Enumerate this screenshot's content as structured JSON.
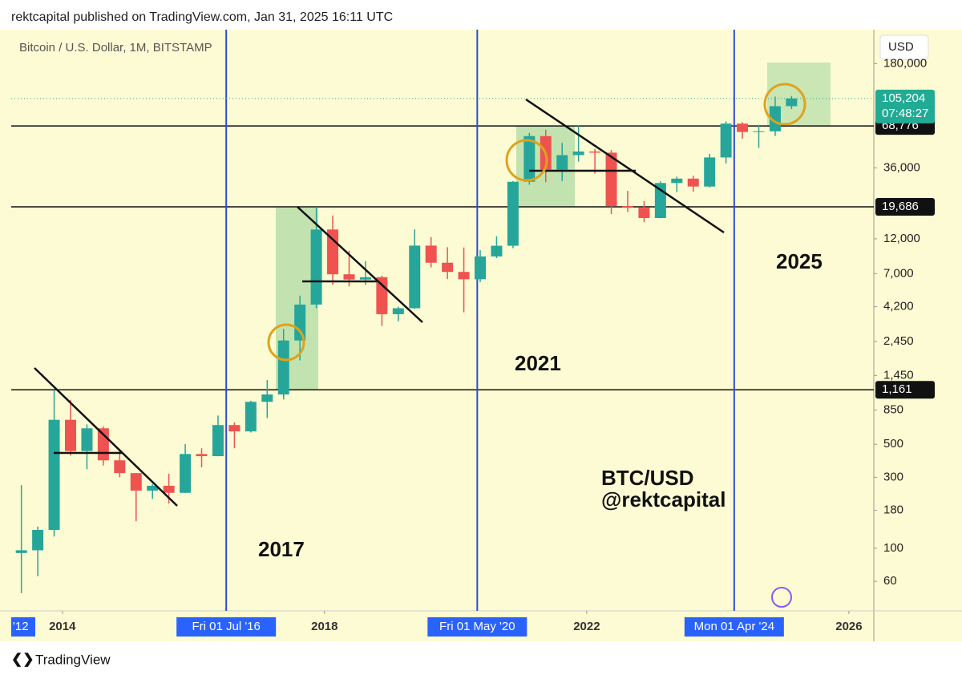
{
  "header": {
    "publisher": "rektcapital published on TradingView.com, Jan 31, 2025 16:11 UTC"
  },
  "footer": {
    "logo": "TradingView"
  },
  "chart_data": {
    "type": "candlestick",
    "symbol": "Bitcoin / U.S. Dollar, 1M, BITSTAMP",
    "currency": "USD",
    "log_scale": true,
    "up_color": "#26a69a",
    "down_color": "#ef5350",
    "xlim": [
      2013.22,
      2026.38
    ],
    "ylim": [
      38,
      305000
    ],
    "yticks": [
      60,
      100,
      180,
      300,
      500,
      850,
      {
        "value": 1450,
        "label": "1,450"
      },
      {
        "value": 2450,
        "label": "2,450"
      },
      {
        "value": 4200,
        "label": "4,200"
      },
      {
        "value": 7000,
        "label": "7,000"
      },
      {
        "value": 12000,
        "label": "12,000"
      },
      {
        "value": 36000,
        "label": "36,000"
      },
      {
        "value": 180000,
        "label": "180,000"
      }
    ],
    "xticks": [
      {
        "value": 2014,
        "label": "2014"
      },
      {
        "value": 2018,
        "label": "2018"
      },
      {
        "value": 2022,
        "label": "2022"
      },
      {
        "value": 2026,
        "label": "2026"
      }
    ],
    "range_start_label": "'12",
    "markers": [
      {
        "value": 2016.5,
        "label": "Fri 01 Jul '16"
      },
      {
        "value": 2020.33,
        "label": "Fri 01 May '20"
      },
      {
        "value": 2024.25,
        "label": "Mon 01 Apr '24"
      }
    ],
    "levels": [
      {
        "value": 68776,
        "label": "68,776"
      },
      {
        "value": 19686,
        "label": "19,686"
      },
      {
        "value": 1161,
        "label": "1,161"
      }
    ],
    "last_price": {
      "value": 105204,
      "label": "105,204"
    },
    "countdown": "07:48:27",
    "annotations": [
      "2017",
      "2021",
      "2025",
      "BTC/USD",
      "@rektcapital"
    ],
    "x": [
      2013.25,
      2013.5,
      2013.75,
      2014,
      2014.25,
      2014.5,
      2014.75,
      2015,
      2015.25,
      2015.5,
      2015.75,
      2016,
      2016.25,
      2016.5,
      2016.75,
      2017,
      2017.25,
      2017.5,
      2017.75,
      2018,
      2018.25,
      2018.5,
      2018.75,
      2019,
      2019.25,
      2019.5,
      2019.75,
      2020,
      2020.25,
      2020.5,
      2020.75,
      2021,
      2021.25,
      2021.5,
      2021.75,
      2022,
      2022.25,
      2022.5,
      2022.75,
      2023,
      2023.25,
      2023.5,
      2023.75,
      2024,
      2024.25,
      2024.5,
      2024.75,
      2025
    ],
    "open": [
      93,
      97,
      133,
      730,
      450,
      640,
      390,
      320,
      244,
      263,
      236,
      430,
      416,
      673,
      610,
      964,
      1080,
      2490,
      4340,
      13860,
      6930,
      6390,
      6625,
      3740,
      4100,
      10800,
      8290,
      7190,
      6420,
      9140,
      10780,
      28990,
      58800,
      35000,
      43800,
      46300,
      45500,
      19900,
      19400,
      16550,
      28450,
      30450,
      26950,
      42250,
      71300,
      62700,
      63300,
      93400
    ],
    "high": [
      266,
      140,
      1160,
      995,
      680,
      660,
      455,
      320,
      270,
      317,
      502,
      470,
      780,
      700,
      980,
      1350,
      2980,
      4980,
      19700,
      17200,
      9990,
      8500,
      6790,
      4200,
      13880,
      12330,
      10540,
      10500,
      10080,
      12470,
      29300,
      61800,
      64900,
      52900,
      69000,
      48200,
      47400,
      25200,
      21500,
      29200,
      31400,
      31800,
      44700,
      73800,
      72800,
      70000,
      108300,
      109400
    ],
    "low": [
      50,
      65,
      120,
      420,
      340,
      360,
      300,
      152,
      215,
      200,
      235,
      350,
      415,
      470,
      600,
      750,
      1000,
      1830,
      4100,
      5900,
      5750,
      5880,
      3120,
      3350,
      4060,
      7710,
      6440,
      3850,
      6150,
      8900,
      10380,
      27700,
      28800,
      29300,
      39600,
      32900,
      17600,
      18200,
      15500,
      16500,
      24750,
      24900,
      26550,
      38550,
      56500,
      49000,
      58900,
      89200
    ],
    "close": [
      97,
      133,
      730,
      450,
      640,
      390,
      320,
      244,
      263,
      236,
      430,
      416,
      673,
      610,
      964,
      1080,
      2490,
      4340,
      13860,
      6930,
      6390,
      6625,
      3740,
      4100,
      10800,
      8290,
      7190,
      6420,
      9140,
      10780,
      28990,
      58800,
      35000,
      43800,
      46300,
      45500,
      19900,
      19400,
      16550,
      28450,
      30450,
      26950,
      42250,
      71300,
      62700,
      63300,
      93400,
      105204
    ]
  }
}
